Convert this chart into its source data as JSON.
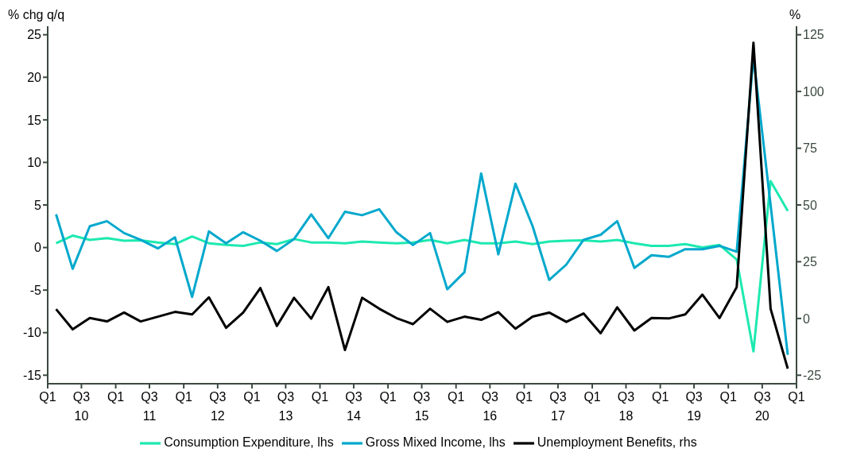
{
  "chart_data": {
    "type": "line",
    "x": [
      "2010-02-15",
      "2010-05-15",
      "2010-08-15",
      "2010-11-15",
      "2011-02-15",
      "2011-05-15",
      "2011-08-15",
      "2011-11-15",
      "2012-02-15",
      "2012-05-15",
      "2012-08-15",
      "2012-11-15",
      "2013-02-15",
      "2013-05-15",
      "2013-08-15",
      "2013-11-15",
      "2014-02-15",
      "2014-05-15",
      "2014-08-15",
      "2014-11-15",
      "2015-02-15",
      "2015-05-15",
      "2015-08-15",
      "2015-11-15",
      "2016-02-15",
      "2016-05-15",
      "2016-08-15",
      "2016-11-15",
      "2017-02-15",
      "2017-05-15",
      "2017-08-15",
      "2017-11-15",
      "2018-02-15",
      "2018-05-15",
      "2018-08-15",
      "2018-11-15",
      "2019-02-15",
      "2019-05-15",
      "2019-08-15",
      "2019-11-15",
      "2020-02-15",
      "2020-05-15",
      "2020-08-15",
      "2020-11-15"
    ],
    "series": [
      {
        "name": "Consumption Expenditure, lhs",
        "color": "#1de9b0",
        "values": [
          0.5,
          1.4,
          0.9,
          1.1,
          0.8,
          0.85,
          0.6,
          0.4,
          1.3,
          0.5,
          0.3,
          0.2,
          0.6,
          0.4,
          1.0,
          0.6,
          0.6,
          0.5,
          0.7,
          0.6,
          0.5,
          0.6,
          0.9,
          0.5,
          0.9,
          0.5,
          0.5,
          0.7,
          0.4,
          0.7,
          0.8,
          0.85,
          0.7,
          0.9,
          0.5,
          0.2,
          0.2,
          0.4,
          0.0,
          0.3,
          -1.4,
          -12.2,
          7.8,
          4.3
        ]
      },
      {
        "name": "Gross Mixed Income, lhs",
        "color": "#00a8cc",
        "values": [
          3.9,
          -2.5,
          2.5,
          3.1,
          1.7,
          0.9,
          -0.1,
          1.2,
          -5.8,
          1.9,
          0.5,
          1.8,
          0.8,
          -0.4,
          1.0,
          3.9,
          1.1,
          4.2,
          3.8,
          4.5,
          1.8,
          0.3,
          1.7,
          -4.9,
          -2.9,
          8.7,
          -0.8,
          7.5,
          2.5,
          -3.8,
          -2.0,
          0.9,
          1.5,
          3.1,
          -2.4,
          -0.9,
          -1.1,
          -0.2,
          -0.2,
          0.2,
          -0.5,
          22.4,
          5.0,
          -12.6
        ]
      },
      {
        "name": "Unemployment Benefits, rhs",
        "color": "#000000",
        "axis": "y2",
        "values": [
          4.1,
          -4.8,
          0.2,
          -1.3,
          2.6,
          -1.3,
          0.8,
          2.9,
          1.8,
          9.3,
          -4.1,
          2.6,
          13.4,
          -3.3,
          9.1,
          -0.1,
          13.8,
          -13.9,
          9.1,
          4.3,
          0.2,
          -2.5,
          4.3,
          -1.5,
          0.8,
          -0.6,
          2.8,
          -4.5,
          0.8,
          2.6,
          -1.5,
          2.2,
          -6.5,
          4.9,
          -5.3,
          0.2,
          0.0,
          1.8,
          10.5,
          0.2,
          13.8,
          121.5,
          4.3,
          -22.1
        ]
      }
    ],
    "ylabel": "% chg q/q",
    "y2label": "%",
    "xlim": [
      "2010-01-01",
      "2021-01-01"
    ],
    "xticks": [
      {
        "value": "2010-01-01",
        "label": "Q1"
      },
      {
        "value": "2010-07-01",
        "label": "Q3\n10"
      },
      {
        "value": "2011-01-01",
        "label": "Q1"
      },
      {
        "value": "2011-07-01",
        "label": "Q3\n11"
      },
      {
        "value": "2012-01-01",
        "label": "Q1"
      },
      {
        "value": "2012-07-01",
        "label": "Q3\n12"
      },
      {
        "value": "2013-01-01",
        "label": "Q1"
      },
      {
        "value": "2013-07-01",
        "label": "Q3\n13"
      },
      {
        "value": "2014-01-01",
        "label": "Q1"
      },
      {
        "value": "2014-07-01",
        "label": "Q3\n14"
      },
      {
        "value": "2015-01-01",
        "label": "Q1"
      },
      {
        "value": "2015-07-01",
        "label": "Q3\n15"
      },
      {
        "value": "2016-01-01",
        "label": "Q1"
      },
      {
        "value": "2016-07-01",
        "label": "Q3\n16"
      },
      {
        "value": "2017-01-01",
        "label": "Q1"
      },
      {
        "value": "2017-07-01",
        "label": "Q3\n17"
      },
      {
        "value": "2018-01-01",
        "label": "Q1"
      },
      {
        "value": "2018-07-01",
        "label": "Q3\n18"
      },
      {
        "value": "2019-01-01",
        "label": "Q1"
      },
      {
        "value": "2019-07-01",
        "label": "Q3\n19"
      },
      {
        "value": "2020-01-01",
        "label": "Q1"
      },
      {
        "value": "2020-07-01",
        "label": "Q3\n20"
      },
      {
        "value": "2021-01-01",
        "label": "Q1"
      }
    ],
    "ylim": [
      -16,
      26
    ],
    "yticks": [
      -15,
      -10,
      -5,
      0,
      5,
      10,
      15,
      20,
      25
    ],
    "y2lim": [
      -28.75,
      128.75
    ],
    "y2ticks": [
      -25,
      0,
      25,
      50,
      75,
      100,
      125
    ],
    "grid": false,
    "legend": "bottom",
    "marker": "none",
    "line_style": "solid"
  }
}
